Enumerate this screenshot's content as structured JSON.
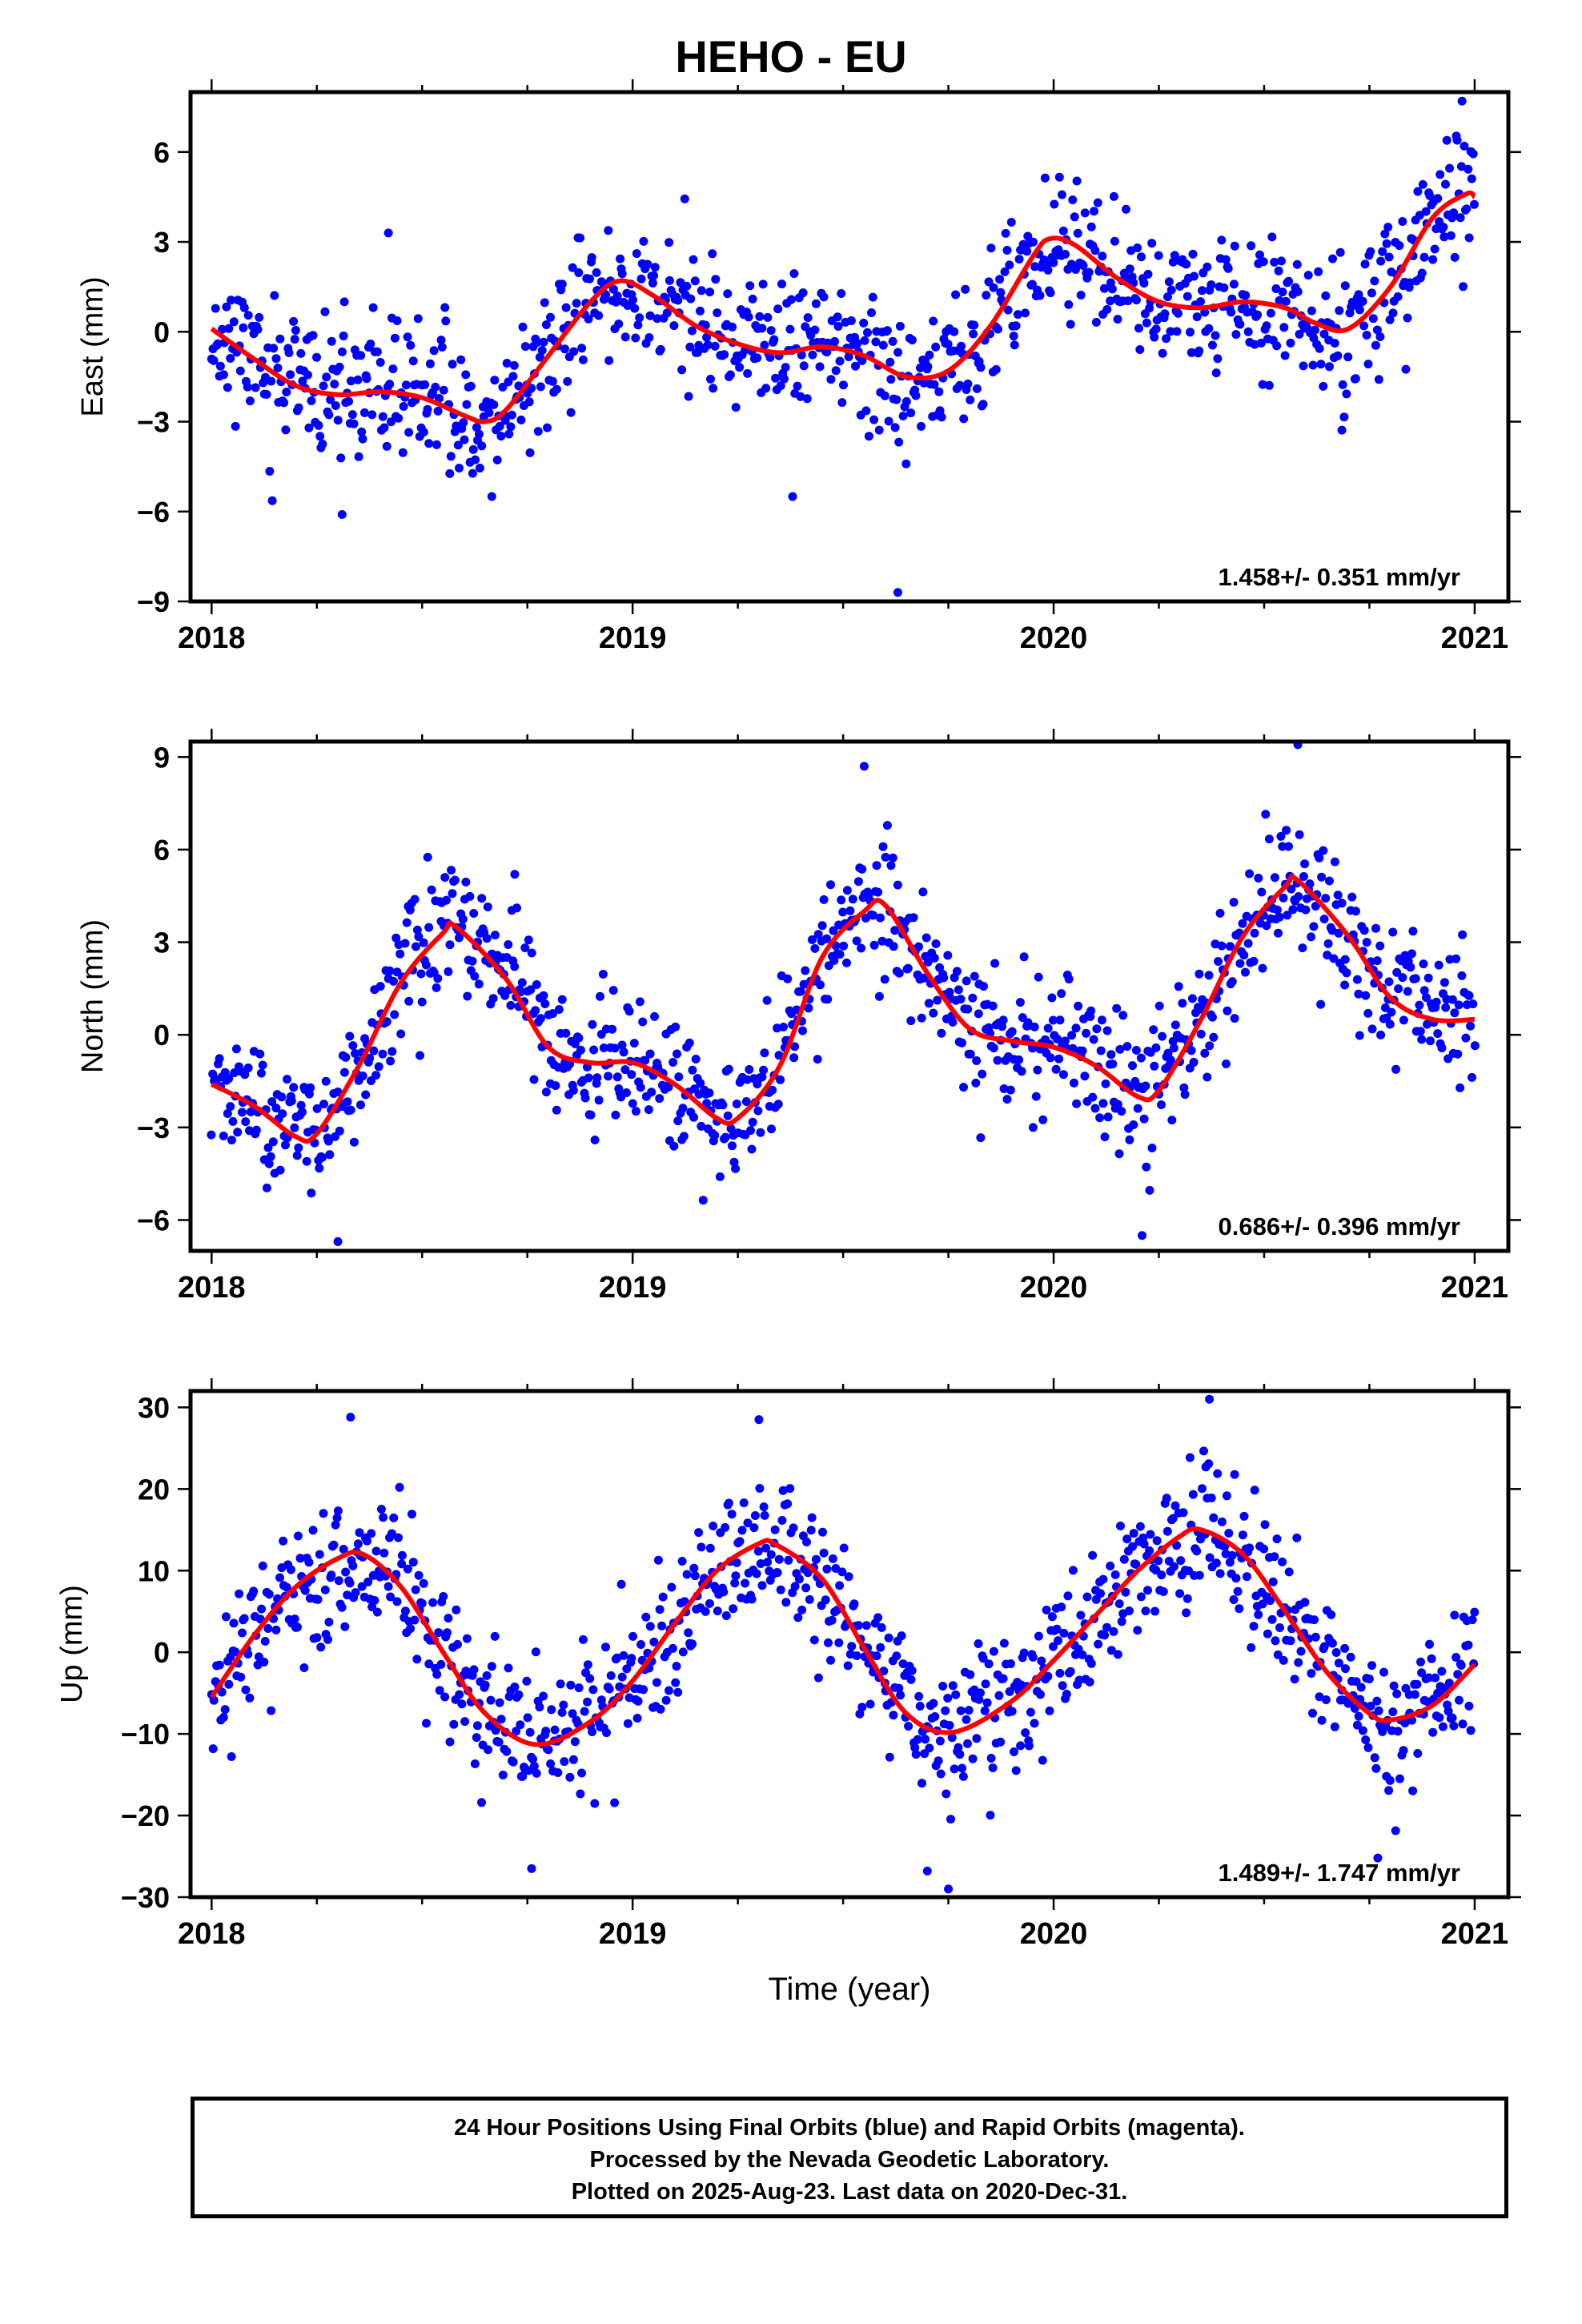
{
  "title": "HEHO - EU",
  "footer": {
    "line1": "24 Hour Positions Using Final Orbits (blue) and Rapid Orbits (magenta).",
    "line2": "Processed by the Nevada Geodetic Laboratory.",
    "line3": "Plotted on 2025-Aug-23. Last data on 2020-Dec-31."
  },
  "colors": {
    "points": "#0000ff",
    "fit": "#ff0000",
    "frame": "#000000"
  },
  "chart_data": [
    {
      "type": "scatter",
      "ylabel": "East (mm)",
      "xlabel": "",
      "xlim": [
        2017.95,
        2021.08
      ],
      "ylim": [
        -9,
        8
      ],
      "xticks": [
        2018,
        2019,
        2020,
        2021
      ],
      "yticks": [
        -9,
        -6,
        -3,
        0,
        3,
        6
      ],
      "ytick_labels": [
        "−9",
        "−6",
        "−3",
        "0",
        "3",
        "6"
      ],
      "rate_label": "1.458+/- 0.351 mm/yr",
      "fit": {
        "x": [
          2018.0,
          2018.1,
          2018.2,
          2018.3,
          2018.4,
          2018.5,
          2018.6,
          2018.65,
          2018.7,
          2018.8,
          2018.9,
          2018.97,
          2019.05,
          2019.15,
          2019.25,
          2019.35,
          2019.45,
          2019.55,
          2019.65,
          2019.75,
          2019.85,
          2019.95,
          2019.99,
          2020.05,
          2020.15,
          2020.25,
          2020.35,
          2020.45,
          2020.55,
          2020.62,
          2020.7,
          2020.8,
          2020.9,
          2020.98,
          2021.0
        ],
        "y": [
          0.1,
          -0.9,
          -1.8,
          -2.1,
          -2.0,
          -2.2,
          -2.8,
          -3.0,
          -2.6,
          -0.8,
          1.0,
          1.7,
          1.2,
          0.2,
          -0.4,
          -0.7,
          -0.5,
          -0.8,
          -1.5,
          -1.3,
          0.2,
          2.5,
          3.1,
          2.9,
          1.8,
          1.0,
          0.8,
          1.0,
          0.8,
          0.3,
          0.1,
          1.5,
          3.8,
          4.6,
          4.5
        ]
      },
      "scatter": {
        "n": 960,
        "start": 2018.0,
        "end": 2021.0,
        "sd": 1.15,
        "seed": 11,
        "outliers": [
          [
            2019.63,
            -8.7
          ],
          [
            2018.31,
            -6.1
          ],
          [
            2019.38,
            -5.5
          ],
          [
            2020.97,
            7.7
          ],
          [
            2018.42,
            3.3
          ]
        ]
      }
    },
    {
      "type": "scatter",
      "ylabel": "North (mm)",
      "xlabel": "",
      "xlim": [
        2017.95,
        2021.08
      ],
      "ylim": [
        -7,
        9.5
      ],
      "xticks": [
        2018,
        2019,
        2020,
        2021
      ],
      "yticks": [
        -6,
        -3,
        0,
        3,
        6,
        9
      ],
      "ytick_labels": [
        "−6",
        "−3",
        "0",
        "3",
        "6",
        "9"
      ],
      "rate_label": "0.686+/- 0.396 mm/yr",
      "fit": {
        "x": [
          2018.0,
          2018.1,
          2018.2,
          2018.25,
          2018.35,
          2018.45,
          2018.55,
          2018.58,
          2018.7,
          2018.8,
          2018.9,
          2019.0,
          2019.1,
          2019.2,
          2019.25,
          2019.35,
          2019.45,
          2019.55,
          2019.6,
          2019.7,
          2019.8,
          2019.9,
          2020.0,
          2020.1,
          2020.2,
          2020.25,
          2020.35,
          2020.45,
          2020.55,
          2020.58,
          2020.7,
          2020.8,
          2020.9,
          2021.0
        ],
        "y": [
          -1.6,
          -2.3,
          -3.3,
          -3.2,
          -1.0,
          1.7,
          3.3,
          3.5,
          1.8,
          -0.4,
          -0.9,
          -0.9,
          -1.6,
          -2.7,
          -2.7,
          -1.0,
          2.5,
          4.0,
          4.2,
          2.0,
          0.2,
          -0.2,
          -0.4,
          -1.0,
          -2.0,
          -1.8,
          0.5,
          3.2,
          4.8,
          5.0,
          3.2,
          1.2,
          0.5,
          0.5
        ]
      },
      "scatter": {
        "n": 960,
        "start": 2018.0,
        "end": 2021.0,
        "sd": 1.05,
        "seed": 23,
        "outliers": [
          [
            2019.55,
            8.7
          ],
          [
            2020.58,
            9.4
          ],
          [
            2018.3,
            -6.7
          ],
          [
            2020.21,
            -6.5
          ],
          [
            2018.72,
            5.2
          ]
        ]
      }
    },
    {
      "type": "scatter",
      "ylabel": "Up (mm)",
      "xlabel": "Time (year)",
      "xlim": [
        2017.95,
        2021.08
      ],
      "ylim": [
        -30,
        32
      ],
      "xticks": [
        2018,
        2019,
        2020,
        2021
      ],
      "yticks": [
        -30,
        -20,
        -10,
        0,
        10,
        20,
        30
      ],
      "ytick_labels": [
        "−30",
        "−20",
        "−10",
        "0",
        "10",
        "20",
        "30"
      ],
      "rate_label": "1.489+/- 1.747 mm/yr",
      "fit": {
        "x": [
          2018.0,
          2018.1,
          2018.2,
          2018.3,
          2018.36,
          2018.45,
          2018.55,
          2018.65,
          2018.77,
          2018.9,
          2019.0,
          2019.1,
          2019.2,
          2019.3,
          2019.34,
          2019.45,
          2019.55,
          2019.65,
          2019.76,
          2019.9,
          2020.0,
          2020.1,
          2020.2,
          2020.3,
          2020.35,
          2020.45,
          2020.55,
          2020.65,
          2020.75,
          2020.8,
          2020.9,
          2021.0
        ],
        "y": [
          -5.5,
          2.0,
          8.0,
          11.5,
          12.0,
          8.0,
          0.0,
          -7.5,
          -11.3,
          -8.5,
          -3.5,
          3.5,
          10.0,
          13.3,
          13.2,
          9.0,
          0.5,
          -7.5,
          -9.8,
          -6.0,
          -1.0,
          4.5,
          10.0,
          14.2,
          15.0,
          12.0,
          5.0,
          -2.5,
          -7.5,
          -8.3,
          -6.5,
          -1.5
        ]
      },
      "scatter": {
        "n": 960,
        "start": 2018.0,
        "end": 2021.0,
        "sd": 4.3,
        "seed": 37,
        "outliers": [
          [
            2018.33,
            28.8
          ],
          [
            2019.3,
            28.5
          ],
          [
            2020.37,
            31.0
          ],
          [
            2019.75,
            -29.0
          ],
          [
            2018.76,
            -26.5
          ],
          [
            2019.7,
            -26.8
          ],
          [
            2020.77,
            -25.2
          ]
        ]
      }
    }
  ]
}
